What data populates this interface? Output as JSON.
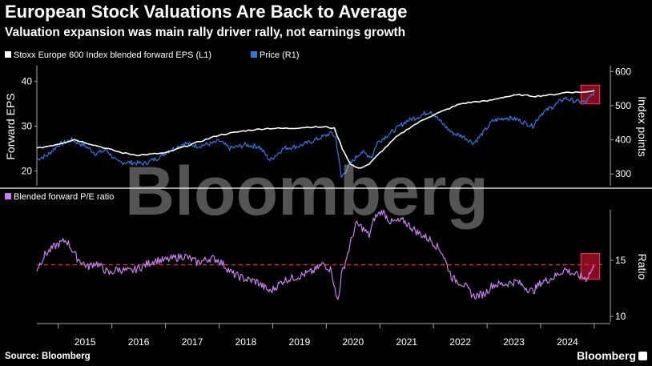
{
  "header": {
    "title": "European Stock Valuations Are Back to Average",
    "subtitle": "Valuation expansion was main rally driver rally, not earnings growth"
  },
  "footer": {
    "source": "Source: Bloomberg",
    "logo": "Bloomberg"
  },
  "watermark": "Bloomberg",
  "colors": {
    "background": "#000000",
    "eps": "#ffffff",
    "price": "#2e7ae6",
    "pe": "#c77ef0",
    "average_line": "#e02a3a",
    "highlight": "#b3112a"
  },
  "chart_data": [
    {
      "type": "line",
      "title": "",
      "legend_placement": "top-left",
      "x_ticks": [
        "2015",
        "2016",
        "2017",
        "2018",
        "2019",
        "2020",
        "2021",
        "2022",
        "2023",
        "2024"
      ],
      "y_left": {
        "label": "Forward EPS",
        "ticks": [
          20,
          30,
          40
        ],
        "range": [
          17,
          43
        ]
      },
      "y_right": {
        "label": "Index points",
        "ticks": [
          300,
          400,
          500,
          600
        ],
        "range": [
          270,
          610
        ]
      },
      "series": [
        {
          "name": "Stoxx Europe 600 Index blended forward EPS (L1)",
          "axis": "left",
          "points": [
            [
              2014.6,
              25
            ],
            [
              2015.0,
              26
            ],
            [
              2015.3,
              27
            ],
            [
              2015.6,
              26
            ],
            [
              2015.9,
              25
            ],
            [
              2016.2,
              24
            ],
            [
              2016.5,
              23.5
            ],
            [
              2016.8,
              23.8
            ],
            [
              2017.0,
              24
            ],
            [
              2017.5,
              26
            ],
            [
              2018.0,
              28
            ],
            [
              2018.5,
              29
            ],
            [
              2018.9,
              29.5
            ],
            [
              2019.3,
              29.5
            ],
            [
              2019.7,
              29.8
            ],
            [
              2020.0,
              29.8
            ],
            [
              2020.15,
              29.5
            ],
            [
              2020.3,
              25
            ],
            [
              2020.45,
              21.5
            ],
            [
              2020.6,
              20.5
            ],
            [
              2020.8,
              21.5
            ],
            [
              2021.0,
              24
            ],
            [
              2021.3,
              27.5
            ],
            [
              2021.6,
              30
            ],
            [
              2021.9,
              32
            ],
            [
              2022.2,
              33.5
            ],
            [
              2022.5,
              35
            ],
            [
              2022.8,
              35.5
            ],
            [
              2023.0,
              35.6
            ],
            [
              2023.3,
              36.5
            ],
            [
              2023.6,
              37
            ],
            [
              2023.9,
              36.7
            ],
            [
              2024.2,
              37
            ],
            [
              2024.5,
              37.6
            ],
            [
              2024.85,
              37.6
            ],
            [
              2025.0,
              38
            ]
          ]
        },
        {
          "name": "Price (R1)",
          "axis": "right",
          "points": [
            [
              2014.6,
              343
            ],
            [
              2014.8,
              355
            ],
            [
              2015.0,
              385
            ],
            [
              2015.25,
              400
            ],
            [
              2015.5,
              382
            ],
            [
              2015.7,
              360
            ],
            [
              2015.9,
              370
            ],
            [
              2016.1,
              335
            ],
            [
              2016.4,
              333
            ],
            [
              2016.6,
              330
            ],
            [
              2016.9,
              350
            ],
            [
              2017.0,
              362
            ],
            [
              2017.35,
              390
            ],
            [
              2017.6,
              382
            ],
            [
              2017.9,
              390
            ],
            [
              2018.0,
              397
            ],
            [
              2018.2,
              375
            ],
            [
              2018.5,
              385
            ],
            [
              2018.75,
              380
            ],
            [
              2018.95,
              340
            ],
            [
              2019.2,
              375
            ],
            [
              2019.5,
              382
            ],
            [
              2019.8,
              400
            ],
            [
              2020.1,
              420
            ],
            [
              2020.18,
              405
            ],
            [
              2020.28,
              290
            ],
            [
              2020.45,
              330
            ],
            [
              2020.65,
              365
            ],
            [
              2020.85,
              350
            ],
            [
              2020.95,
              392
            ],
            [
              2021.2,
              420
            ],
            [
              2021.5,
              455
            ],
            [
              2021.75,
              470
            ],
            [
              2021.95,
              485
            ],
            [
              2022.15,
              450
            ],
            [
              2022.35,
              420
            ],
            [
              2022.55,
              410
            ],
            [
              2022.75,
              390
            ],
            [
              2022.95,
              425
            ],
            [
              2023.1,
              455
            ],
            [
              2023.35,
              465
            ],
            [
              2023.55,
              460
            ],
            [
              2023.85,
              440
            ],
            [
              2024.0,
              475
            ],
            [
              2024.25,
              500
            ],
            [
              2024.45,
              522
            ],
            [
              2024.65,
              513
            ],
            [
              2024.85,
              510
            ],
            [
              2025.0,
              540
            ]
          ]
        }
      ],
      "highlight": {
        "x_range": [
          2024.75,
          2025.1
        ],
        "y_range": [
          505,
          560
        ],
        "axis": "right"
      }
    },
    {
      "type": "line",
      "title": "",
      "legend_placement": "top-left",
      "y_right": {
        "label": "Ratio",
        "ticks": [
          10,
          15
        ],
        "range": [
          9.5,
          19.5
        ]
      },
      "average": 14.6,
      "series": [
        {
          "name": "Blended forward P/E ratio",
          "axis": "right",
          "points": [
            [
              2014.6,
              14.2
            ],
            [
              2014.75,
              15.5
            ],
            [
              2014.95,
              16.3
            ],
            [
              2015.15,
              16.8
            ],
            [
              2015.35,
              15.2
            ],
            [
              2015.55,
              14.4
            ],
            [
              2015.7,
              14.8
            ],
            [
              2015.95,
              13.8
            ],
            [
              2016.1,
              14.2
            ],
            [
              2016.35,
              14.0
            ],
            [
              2016.55,
              14.4
            ],
            [
              2016.8,
              15.0
            ],
            [
              2017.0,
              15.0
            ],
            [
              2017.35,
              15.4
            ],
            [
              2017.6,
              14.8
            ],
            [
              2017.85,
              15.2
            ],
            [
              2018.0,
              15.0
            ],
            [
              2018.25,
              13.8
            ],
            [
              2018.5,
              13.3
            ],
            [
              2018.7,
              13.1
            ],
            [
              2018.95,
              12.2
            ],
            [
              2019.2,
              13.2
            ],
            [
              2019.5,
              13.6
            ],
            [
              2019.75,
              14.0
            ],
            [
              2019.95,
              14.7
            ],
            [
              2020.1,
              14.1
            ],
            [
              2020.18,
              11.8
            ],
            [
              2020.22,
              11.5
            ],
            [
              2020.28,
              13.6
            ],
            [
              2020.4,
              15.6
            ],
            [
              2020.55,
              18.2
            ],
            [
              2020.65,
              18.0
            ],
            [
              2020.8,
              17.2
            ],
            [
              2020.9,
              18.8
            ],
            [
              2021.05,
              19.4
            ],
            [
              2021.2,
              18.4
            ],
            [
              2021.45,
              18.5
            ],
            [
              2021.7,
              17.5
            ],
            [
              2021.95,
              16.8
            ],
            [
              2022.15,
              15.8
            ],
            [
              2022.35,
              13.4
            ],
            [
              2022.55,
              12.9
            ],
            [
              2022.75,
              11.8
            ],
            [
              2022.95,
              12.0
            ],
            [
              2023.1,
              12.8
            ],
            [
              2023.35,
              12.9
            ],
            [
              2023.55,
              13.1
            ],
            [
              2023.85,
              12.2
            ],
            [
              2024.0,
              13.0
            ],
            [
              2024.25,
              13.5
            ],
            [
              2024.45,
              14.2
            ],
            [
              2024.65,
              13.7
            ],
            [
              2024.85,
              13.4
            ],
            [
              2025.0,
              14.4
            ]
          ]
        }
      ],
      "highlight": {
        "x_range": [
          2024.75,
          2025.1
        ],
        "y_range": [
          13.3,
          15.6
        ],
        "axis": "right"
      }
    }
  ]
}
